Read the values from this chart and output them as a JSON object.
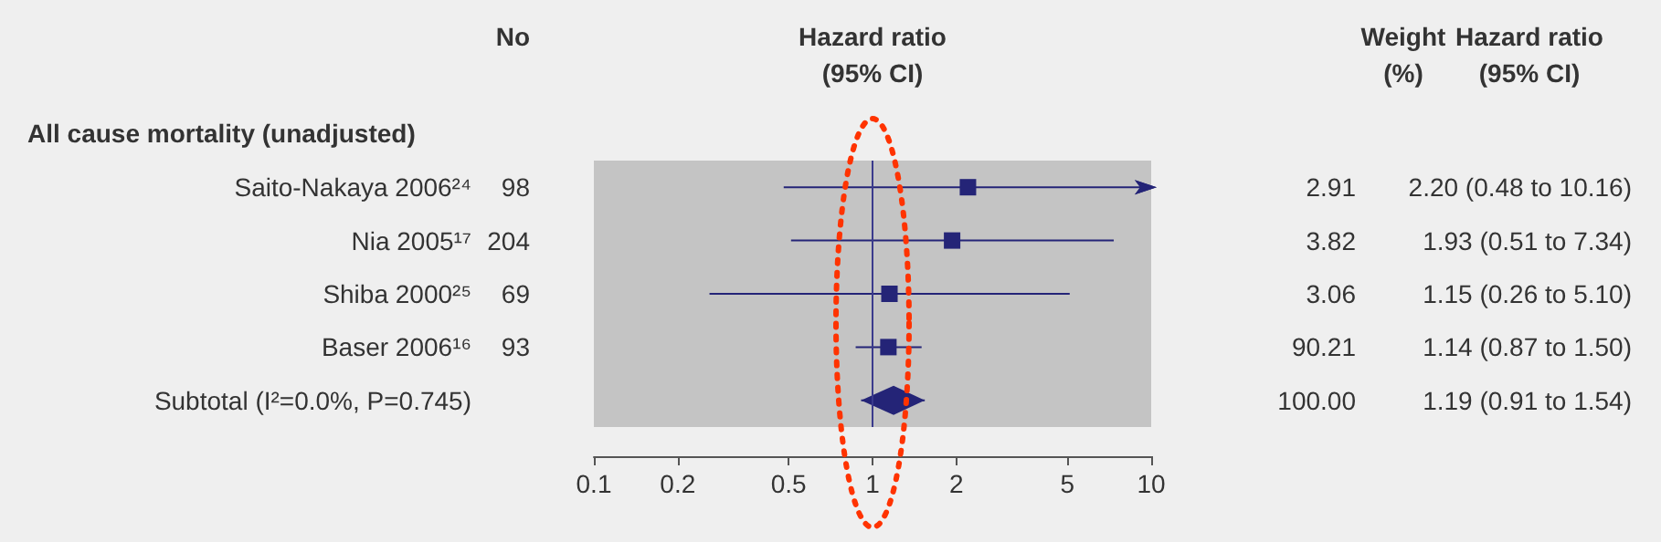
{
  "chart_data": {
    "type": "scatter",
    "orientation": "horizontal",
    "subtitle": "All cause mortality (unadjusted)",
    "xlabel": "Hazard ratio\n(95% CI)",
    "categories": [
      "Saito-Nakaya 2006²⁴",
      "Nia 2005¹⁷",
      "Shiba 2000²⁵",
      "Baser 2006¹⁶",
      "Subtotal (I²=0.0%, P=0.745)"
    ],
    "series": [
      {
        "color": "#242477",
        "marker": "square",
        "values": [
          2.2,
          1.93,
          1.15,
          1.14,
          null
        ],
        "errors": [
          [
            0.48,
            10.16
          ],
          [
            0.51,
            7.34
          ],
          [
            0.26,
            5.1
          ],
          [
            0.87,
            1.5
          ],
          null
        ]
      },
      {
        "color": "#242477",
        "marker": "diamond",
        "values": [
          null,
          null,
          null,
          null,
          1.19
        ],
        "errors": [
          null,
          null,
          null,
          null,
          [
            0.91,
            1.54
          ]
        ]
      }
    ],
    "log": "x",
    "xlim": [
      0.1,
      10
    ],
    "xticks": [
      0.1,
      0.2,
      0.5,
      1,
      2,
      5,
      10
    ],
    "ref_lines": [
      {
        "axis": "x",
        "value": 1,
        "color": "#3a3a8c"
      }
    ],
    "grid": false,
    "annotations": [
      "No",
      "98",
      "204",
      "69",
      "93",
      "Weight\n(%)",
      "2.91",
      "3.82",
      "3.06",
      "90.21",
      "100.00",
      "Hazard ratio\n(95% CI)",
      "2.20 (0.48 to 10.16)",
      "1.93 (0.51 to 7.34)",
      "1.15 (0.26 to 5.10)",
      "1.14 (0.87 to 1.50)",
      "1.19 (0.91 to 1.54)"
    ]
  }
}
